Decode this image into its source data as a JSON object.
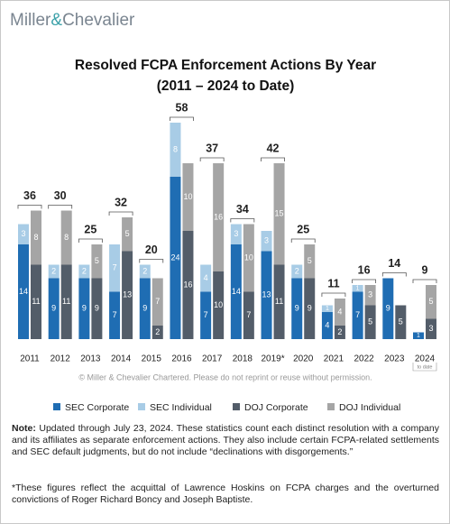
{
  "brand": [
    "Miller",
    "&",
    "Chevalier"
  ],
  "chart_data": {
    "type": "grouped-stacked-bar",
    "title": "Resolved FCPA Enforcement Actions By Year",
    "subtitle": "(2011 – 2024 to Date)",
    "categories": [
      "2011",
      "2012",
      "2013",
      "2014",
      "2015",
      "2016",
      "2017",
      "2018",
      "2019*",
      "2020",
      "2021",
      "2022",
      "2023",
      "2024"
    ],
    "last_category_note": "to date",
    "series": [
      {
        "name": "SEC Corporate",
        "color": "#1f6db3",
        "values": [
          14,
          9,
          9,
          7,
          9,
          24,
          7,
          14,
          13,
          9,
          4,
          7,
          9,
          1
        ]
      },
      {
        "name": "SEC Individual",
        "color": "#a8cce6",
        "values": [
          3,
          2,
          2,
          7,
          2,
          8,
          4,
          3,
          3,
          2,
          1,
          1,
          0,
          0
        ]
      },
      {
        "name": "DOJ Corporate",
        "color": "#535d69",
        "values": [
          11,
          11,
          9,
          13,
          2,
          16,
          10,
          7,
          11,
          9,
          2,
          5,
          5,
          3
        ]
      },
      {
        "name": "DOJ Individual",
        "color": "#a5a5a5",
        "values": [
          8,
          8,
          5,
          5,
          7,
          10,
          16,
          10,
          15,
          5,
          4,
          3,
          0,
          5
        ]
      }
    ],
    "totals": [
      36,
      30,
      25,
      32,
      20,
      58,
      37,
      34,
      42,
      25,
      11,
      16,
      14,
      9
    ],
    "copyright": "© Miller & Chevalier Chartered. Please do not reprint or reuse without permission."
  },
  "note": {
    "label": "Note:",
    "text": " Updated through July 23, 2024. These statistics count each distinct resolution with a company and its affiliates as separate enforcement actions. They also include certain FCPA-related settlements and SEC default judgments, but do not include “declinations with disgorgements.”"
  },
  "footnote": "*These figures reflect the acquittal of Lawrence Hoskins on FCPA charges and the overturned convictions of Roger Richard Boncy and Joseph Baptiste."
}
